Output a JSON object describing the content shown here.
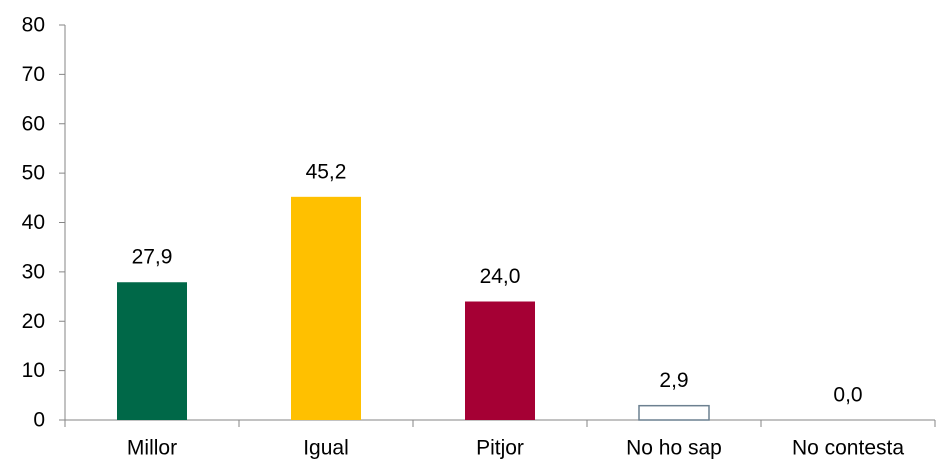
{
  "chart_data": {
    "type": "bar",
    "categories": [
      "Millor",
      "Igual",
      "Pitjor",
      "No ho sap",
      "No contesta"
    ],
    "values": [
      27.9,
      45.2,
      24.0,
      2.9,
      0.0
    ],
    "value_labels": [
      "27,9",
      "45,2",
      "24,0",
      "2,9",
      "0,0"
    ],
    "colors": [
      "#006848",
      "#FFC000",
      "#A50034",
      "#FFFFFF",
      "#FFFFFF"
    ],
    "bar_outline_colors": [
      "none",
      "none",
      "none",
      "#6C8090",
      "none"
    ],
    "ylim": [
      0,
      80
    ],
    "yticks": [
      0,
      10,
      20,
      30,
      40,
      50,
      60,
      70,
      80
    ],
    "ytick_labels": [
      "0",
      "10",
      "20",
      "30",
      "40",
      "50",
      "60",
      "70",
      "80"
    ],
    "grid": false,
    "legend": "none",
    "axis_color": "#868686"
  }
}
